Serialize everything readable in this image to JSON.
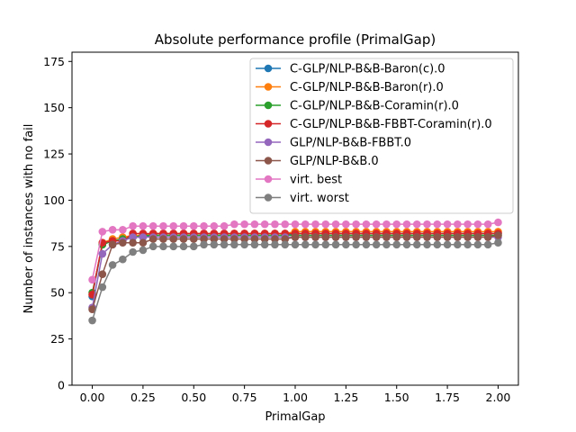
{
  "chart_data": {
    "type": "line",
    "title": "Absolute performance profile (PrimalGap)",
    "xlabel": "PrimalGap",
    "ylabel": "Number of instances with no fail",
    "xlim": [
      -0.1,
      2.1
    ],
    "ylim": [
      0,
      180
    ],
    "xticks": [
      "0.00",
      "0.25",
      "0.50",
      "0.75",
      "1.00",
      "1.25",
      "1.50",
      "1.75",
      "2.00"
    ],
    "yticks": [
      "0",
      "25",
      "50",
      "75",
      "100",
      "125",
      "150",
      "175"
    ],
    "grid": false,
    "legend_position": "top-right",
    "x": [
      0.0,
      0.05,
      0.1,
      0.15,
      0.2,
      0.25,
      0.3,
      0.35,
      0.4,
      0.45,
      0.5,
      0.55,
      0.6,
      0.65,
      0.7,
      0.75,
      0.8,
      0.85,
      0.9,
      0.95,
      1.0,
      1.05,
      1.1,
      1.15,
      1.2,
      1.25,
      1.3,
      1.35,
      1.4,
      1.45,
      1.5,
      1.55,
      1.6,
      1.65,
      1.7,
      1.75,
      1.8,
      1.85,
      1.9,
      1.95,
      2.0
    ],
    "series": [
      {
        "name": "C-GLP/NLP-B&B-Baron(c).0",
        "color": "#1f77b4",
        "values": [
          48,
          76,
          78,
          79,
          80,
          80,
          81,
          81,
          81,
          81,
          81,
          81,
          81,
          81,
          81,
          81,
          81,
          81,
          81,
          81,
          82,
          82,
          82,
          82,
          82,
          82,
          82,
          82,
          82,
          82,
          82,
          82,
          82,
          82,
          82,
          82,
          82,
          82,
          82,
          82,
          82
        ]
      },
      {
        "name": "C-GLP/NLP-B&B-Baron(r).0",
        "color": "#ff7f0e",
        "values": [
          49,
          77,
          79,
          80,
          81,
          81,
          82,
          82,
          82,
          82,
          82,
          82,
          82,
          82,
          82,
          82,
          82,
          82,
          82,
          82,
          83,
          83,
          83,
          83,
          83,
          83,
          83,
          83,
          83,
          83,
          83,
          83,
          83,
          83,
          83,
          83,
          83,
          83,
          83,
          83,
          83
        ]
      },
      {
        "name": "C-GLP/NLP-B&B-Coramin(r).0",
        "color": "#2ca02c",
        "values": [
          50,
          76,
          78,
          79,
          80,
          81,
          81,
          81,
          81,
          81,
          81,
          81,
          81,
          81,
          81,
          81,
          81,
          81,
          81,
          81,
          81,
          81,
          81,
          81,
          81,
          81,
          81,
          81,
          81,
          81,
          81,
          81,
          81,
          81,
          81,
          81,
          81,
          81,
          81,
          81,
          81
        ]
      },
      {
        "name": "C-GLP/NLP-B&B-FBBT-Coramin(r).0",
        "color": "#d62728",
        "values": [
          49,
          77,
          78,
          78,
          82,
          82,
          82,
          82,
          82,
          82,
          82,
          82,
          82,
          82,
          82,
          82,
          82,
          82,
          82,
          82,
          82,
          82,
          82,
          82,
          82,
          82,
          82,
          82,
          82,
          82,
          82,
          82,
          82,
          82,
          82,
          82,
          82,
          82,
          82,
          82,
          82
        ]
      },
      {
        "name": "GLP/NLP-B&B-FBBT.0",
        "color": "#9467bd",
        "values": [
          42,
          71,
          76,
          78,
          80,
          80,
          80,
          80,
          80,
          80,
          80,
          80,
          80,
          80,
          80,
          80,
          80,
          80,
          80,
          80,
          80,
          80,
          80,
          80,
          80,
          80,
          80,
          80,
          80,
          80,
          80,
          80,
          80,
          80,
          80,
          80,
          80,
          80,
          80,
          80,
          80
        ]
      },
      {
        "name": "GLP/NLP-B&B.0",
        "color": "#8c564b",
        "values": [
          41,
          60,
          76,
          77,
          77,
          77,
          79,
          79,
          79,
          79,
          79,
          79,
          79,
          79,
          79,
          79,
          79,
          79,
          79,
          79,
          80,
          80,
          80,
          80,
          80,
          80,
          80,
          80,
          80,
          80,
          80,
          80,
          80,
          80,
          80,
          80,
          80,
          80,
          80,
          80,
          81
        ]
      },
      {
        "name": "virt. best",
        "color": "#e377c2",
        "values": [
          57,
          83,
          84,
          84,
          86,
          86,
          86,
          86,
          86,
          86,
          86,
          86,
          86,
          86,
          87,
          87,
          87,
          87,
          87,
          87,
          87,
          87,
          87,
          87,
          87,
          87,
          87,
          87,
          87,
          87,
          87,
          87,
          87,
          87,
          87,
          87,
          87,
          87,
          87,
          87,
          88
        ]
      },
      {
        "name": "virt. worst",
        "color": "#7f7f7f",
        "values": [
          35,
          53,
          65,
          68,
          72,
          73,
          75,
          75,
          75,
          75,
          75,
          76,
          76,
          76,
          76,
          76,
          76,
          76,
          76,
          76,
          76,
          76,
          76,
          76,
          76,
          76,
          76,
          76,
          76,
          76,
          76,
          76,
          76,
          76,
          76,
          76,
          76,
          76,
          76,
          76,
          77
        ]
      }
    ]
  }
}
